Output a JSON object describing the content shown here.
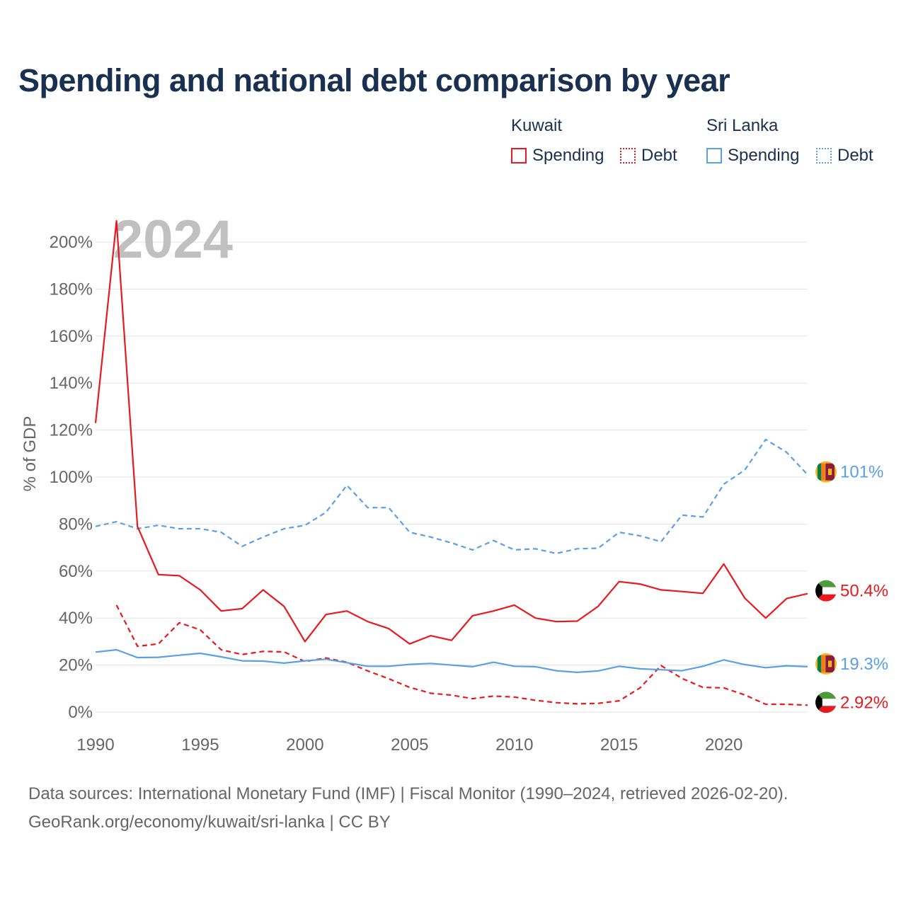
{
  "chart_data": {
    "type": "line",
    "title": "Spending and national debt comparison by year",
    "ylabel": "% of GDP",
    "xlabel": "",
    "year_label": "2024",
    "x": [
      1990,
      1991,
      1992,
      1993,
      1994,
      1995,
      1996,
      1997,
      1998,
      1999,
      2000,
      2001,
      2002,
      2003,
      2004,
      2005,
      2006,
      2007,
      2008,
      2009,
      2010,
      2011,
      2012,
      2013,
      2014,
      2015,
      2016,
      2017,
      2018,
      2019,
      2020,
      2021,
      2022,
      2023,
      2024
    ],
    "xlim": [
      1990,
      2024
    ],
    "ylim": [
      0,
      200
    ],
    "x_ticks": [
      1990,
      1995,
      2000,
      2005,
      2010,
      2015,
      2020
    ],
    "x_tick_labels": [
      "1990",
      "1995",
      "2000",
      "2005",
      "2010",
      "2015",
      "2020"
    ],
    "y_ticks": [
      0,
      20,
      40,
      60,
      80,
      100,
      120,
      140,
      160,
      180,
      200
    ],
    "y_tick_labels": [
      "0%",
      "20%",
      "40%",
      "60%",
      "80%",
      "100%",
      "120%",
      "140%",
      "160%",
      "180%",
      "200%"
    ],
    "legend_groups": [
      {
        "country": "Kuwait",
        "spending_label": "Spending",
        "debt_label": "Debt"
      },
      {
        "country": "Sri Lanka",
        "spending_label": "Spending",
        "debt_label": "Debt"
      }
    ],
    "series": [
      {
        "name": "Kuwait Spending",
        "country": "Kuwait",
        "metric": "Spending",
        "color": "#e8191f",
        "dash": false,
        "values": [
          123,
          209,
          79,
          58.5,
          58,
          52,
          43,
          44,
          52,
          45,
          30,
          41.5,
          43,
          38.5,
          35.5,
          29,
          32.5,
          30.5,
          41,
          43,
          45.5,
          40,
          38.5,
          38.7,
          45,
          55.5,
          54.5,
          52,
          51.3,
          50.5,
          63,
          48.5,
          40,
          48.3,
          50.4
        ],
        "end_label": "50.4%"
      },
      {
        "name": "Kuwait Debt",
        "country": "Kuwait",
        "metric": "Debt",
        "color": "#e8191f",
        "dash": true,
        "values": [
          null,
          45.5,
          28,
          29,
          38,
          35,
          26.5,
          24.5,
          25.8,
          25.6,
          21.5,
          23,
          21.2,
          17.5,
          14.2,
          10.5,
          8,
          7.2,
          5.7,
          6.8,
          6.4,
          5,
          4,
          3.5,
          3.7,
          4.8,
          10.3,
          19.8,
          14.3,
          10.5,
          10.3,
          7.3,
          3.3,
          3.3,
          2.92
        ],
        "end_label": "2.92%"
      },
      {
        "name": "Sri Lanka Spending",
        "country": "Sri Lanka",
        "metric": "Spending",
        "color": "#5aa0e3",
        "dash": false,
        "values": [
          25.5,
          26.5,
          23.2,
          23.3,
          24.2,
          25,
          23.5,
          21.8,
          21.7,
          20.8,
          21.8,
          22.5,
          21,
          19.5,
          19.5,
          20.3,
          20.7,
          20,
          19.3,
          21.2,
          19.5,
          19.3,
          17.6,
          16.9,
          17.5,
          19.5,
          18.4,
          18,
          17.6,
          19.5,
          22.2,
          20.2,
          18.9,
          19.7,
          19.3
        ],
        "end_label": "19.3%"
      },
      {
        "name": "Sri Lanka Debt",
        "country": "Sri Lanka",
        "metric": "Debt",
        "color": "#5aa0e3",
        "dash": true,
        "values": [
          79,
          81,
          78,
          79.5,
          78,
          78,
          76.5,
          70.5,
          74.5,
          78,
          79.5,
          85,
          96.5,
          87,
          87,
          76.5,
          74.5,
          72,
          69,
          73,
          69,
          69.5,
          67.5,
          69.5,
          69.7,
          76.5,
          75,
          72.5,
          83.8,
          83,
          97,
          103,
          116,
          110.5,
          101
        ],
        "end_label": "101%"
      }
    ]
  },
  "footer": {
    "line1": "Data sources: International Monetary Fund (IMF) | Fiscal Monitor (1990–2024, retrieved 2026-02-20).",
    "line2": "GeoRank.org/economy/kuwait/sri-lanka | CC BY"
  },
  "flags": {
    "kuwait": {
      "green": "#4f9a3a",
      "white": "#ffffff",
      "red": "#e8191f",
      "black": "#000000"
    },
    "sri_lanka": {
      "maroon": "#8d1b3d",
      "gold": "#f4b51f",
      "green": "#00804c",
      "orange": "#f07d1b"
    }
  }
}
